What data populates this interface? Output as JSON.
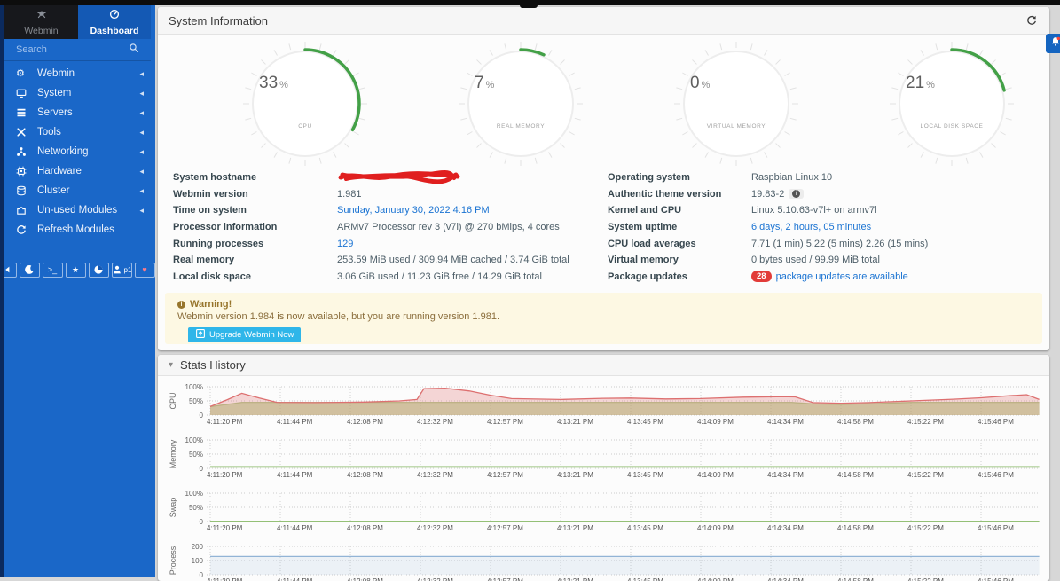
{
  "sidebar": {
    "colors": {
      "bg": "#1a67c8",
      "edge": "#0b2a5e",
      "webmin_tab_bg": "#17181c",
      "active_tab_bg": "#1459b4"
    },
    "tabs": [
      {
        "label": "Webmin",
        "icon": "webmin-logo",
        "active": false
      },
      {
        "label": "Dashboard",
        "icon": "dashboard",
        "active": true
      }
    ],
    "search": {
      "placeholder": "Search",
      "icon": "search"
    },
    "items": [
      {
        "label": "Webmin",
        "icon": "gear",
        "caret": true
      },
      {
        "label": "System",
        "icon": "monitor",
        "caret": true
      },
      {
        "label": "Servers",
        "icon": "server-stack",
        "caret": true
      },
      {
        "label": "Tools",
        "icon": "tools",
        "caret": true
      },
      {
        "label": "Networking",
        "icon": "network",
        "caret": true
      },
      {
        "label": "Hardware",
        "icon": "hardware-chip",
        "caret": true
      },
      {
        "label": "Cluster",
        "icon": "cluster-stack",
        "caret": true
      },
      {
        "label": "Un-used Modules",
        "icon": "puzzle",
        "caret": true
      },
      {
        "label": "Refresh Modules",
        "icon": "refresh",
        "caret": false
      }
    ],
    "footer_buttons": [
      {
        "name": "collapse-sidebar",
        "icon": "collapse"
      },
      {
        "name": "night-mode",
        "icon": "moon"
      },
      {
        "name": "terminal",
        "icon": "terminal"
      },
      {
        "name": "favorites",
        "icon": "star"
      },
      {
        "name": "theme-options",
        "icon": "pie"
      },
      {
        "name": "user-session",
        "icon": "user",
        "text": "p1"
      },
      {
        "name": "sponsor",
        "icon": "heart",
        "color": "#ff7b86"
      }
    ]
  },
  "header": {
    "title": "System Information"
  },
  "gauges": {
    "arc_color": "#43a047",
    "items": [
      {
        "value": 33,
        "suffix": "%",
        "label": "CPU"
      },
      {
        "value": 7,
        "suffix": "%",
        "label": "REAL MEMORY"
      },
      {
        "value": 0,
        "suffix": "%",
        "label": "VIRTUAL MEMORY"
      },
      {
        "value": 21,
        "suffix": "%",
        "label": "LOCAL DISK SPACE"
      }
    ]
  },
  "info": {
    "link_color": "#1a73d2",
    "left": [
      {
        "label": "System hostname",
        "value": "",
        "redacted": true
      },
      {
        "label": "Webmin version",
        "value": "1.981"
      },
      {
        "label": "Time on system",
        "value": "Sunday, January 30, 2022 4:16 PM",
        "link": true
      },
      {
        "label": "Processor information",
        "value": "ARMv7 Processor rev 3 (v7l) @ 270 bMips, 4 cores"
      },
      {
        "label": "Running processes",
        "value": "129",
        "link": true
      },
      {
        "label": "Real memory",
        "value": "253.59 MiB used / 309.94 MiB cached / 3.74 GiB total"
      },
      {
        "label": "Local disk space",
        "value": "3.06 GiB used / 11.23 GiB free / 14.29 GiB total"
      }
    ],
    "right": [
      {
        "label": "Operating system",
        "value": "Raspbian Linux 10"
      },
      {
        "label": "Authentic theme version",
        "value": "19.83-2",
        "info_badge": true
      },
      {
        "label": "Kernel and CPU",
        "value": "Linux 5.10.63-v7l+ on armv7l"
      },
      {
        "label": "System uptime",
        "value": "6 days, 2 hours, 05 minutes",
        "link": true
      },
      {
        "label": "CPU load averages",
        "value": "7.71 (1 min) 5.22 (5 mins) 2.26 (15 mins)"
      },
      {
        "label": "Virtual memory",
        "value": "0 bytes used / 99.99 MiB total"
      },
      {
        "label": "Package updates",
        "value": "package updates are available",
        "count_badge": "28",
        "link": true
      }
    ]
  },
  "warning": {
    "title": "Warning!",
    "message": "Webmin version 1.984 is now available, but you are running version 1.981.",
    "button_label": "Upgrade Webmin Now",
    "bg": "#fdf8e3",
    "text_color": "#8a6d3b",
    "button_color": "#2fb6e9"
  },
  "stats": {
    "title": "Stats History"
  },
  "notifications": {
    "icon": "bell",
    "bg": "#1565c0",
    "dot_color": "#ff4336"
  },
  "chart_data": {
    "type": "area",
    "x_tick_labels": [
      "4:11:20 PM",
      "4:11:44 PM",
      "4:12:08 PM",
      "4:12:32 PM",
      "4:12:57 PM",
      "4:13:21 PM",
      "4:13:45 PM",
      "4:14:09 PM",
      "4:14:34 PM",
      "4:14:58 PM",
      "4:15:22 PM",
      "4:15:46 PM"
    ],
    "grid": true,
    "charts": [
      {
        "name": "CPU",
        "ylabel": "CPU",
        "ylim": [
          0,
          100
        ],
        "ytick_labels": [
          "100%",
          "50%",
          "0"
        ],
        "series": [
          {
            "name": "cpu-base",
            "color": "rgba(140,180,90,0.6)",
            "fill": "rgba(164,198,117,0.55)",
            "points": [
              [
                0,
                30
              ],
              [
                0.45,
                45
              ],
              [
                8.3,
                45
              ],
              [
                8.6,
                40
              ],
              [
                9,
                38
              ],
              [
                9.5,
                41
              ],
              [
                10,
                45
              ],
              [
                11.83,
                45
              ]
            ]
          },
          {
            "name": "cpu-used",
            "color": "#dd7070",
            "fill": "rgba(221,112,112,0.28)",
            "points": [
              [
                0,
                30
              ],
              [
                0.25,
                55
              ],
              [
                0.45,
                77
              ],
              [
                0.7,
                60
              ],
              [
                0.95,
                45
              ],
              [
                1.5,
                44
              ],
              [
                2.2,
                46
              ],
              [
                2.7,
                50
              ],
              [
                2.95,
                55
              ],
              [
                3.05,
                93
              ],
              [
                3.35,
                95
              ],
              [
                3.7,
                85
              ],
              [
                4,
                70
              ],
              [
                4.3,
                58
              ],
              [
                5,
                55
              ],
              [
                5.6,
                59
              ],
              [
                6,
                60
              ],
              [
                6.5,
                57
              ],
              [
                7,
                58
              ],
              [
                7.6,
                63
              ],
              [
                8.2,
                65
              ],
              [
                8.35,
                64
              ],
              [
                8.6,
                44
              ],
              [
                9,
                42
              ],
              [
                9.4,
                44
              ],
              [
                10,
                50
              ],
              [
                10.6,
                56
              ],
              [
                11,
                61
              ],
              [
                11.4,
                68
              ],
              [
                11.65,
                72
              ],
              [
                11.83,
                55
              ]
            ]
          }
        ]
      },
      {
        "name": "Memory",
        "ylabel": "Memory",
        "ylim": [
          0,
          100
        ],
        "ytick_labels": [
          "100%",
          "50%",
          "0"
        ],
        "series": [
          {
            "name": "memory-used",
            "color": "#86b763",
            "fill": "rgba(134,183,99,0.25)",
            "points": [
              [
                0,
                6
              ],
              [
                11.83,
                6
              ]
            ]
          }
        ]
      },
      {
        "name": "Swap",
        "ylabel": "Swap",
        "ylim": [
          0,
          100
        ],
        "ytick_labels": [
          "100%",
          "50%",
          "0"
        ],
        "series": [
          {
            "name": "swap-used",
            "color": "#86b763",
            "fill": "rgba(134,183,99,0.2)",
            "points": [
              [
                0,
                0.6
              ],
              [
                11.83,
                0.6
              ]
            ]
          }
        ]
      },
      {
        "name": "Process",
        "ylabel": "Process",
        "ylim": [
          0,
          200
        ],
        "ytick_labels": [
          "200",
          "100",
          "0"
        ],
        "series": [
          {
            "name": "process-count",
            "color": "#92b4d6",
            "fill": "rgba(146,180,214,0.15)",
            "points": [
              [
                0,
                129
              ],
              [
                11.83,
                129
              ]
            ]
          }
        ]
      }
    ]
  }
}
